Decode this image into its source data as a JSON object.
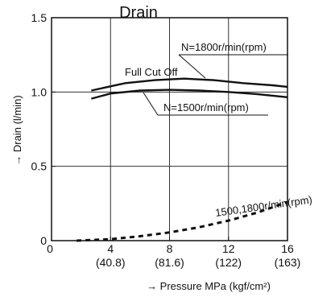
{
  "chart_data": {
    "type": "line",
    "title": "Drain",
    "xlabel": "→ Pressure MPa (kgf/cm²)",
    "ylabel": "→ Drain (l/min)",
    "xlim": [
      0,
      16
    ],
    "ylim": [
      0,
      1.5
    ],
    "grid": true,
    "x_ticks": [
      {
        "value": 0,
        "label": "0",
        "sub": ""
      },
      {
        "value": 4,
        "label": "4",
        "sub": "(40.8)"
      },
      {
        "value": 8,
        "label": "8",
        "sub": "(81.6)"
      },
      {
        "value": 12,
        "label": "12",
        "sub": "(122)"
      },
      {
        "value": 16,
        "label": "16",
        "sub": "(163)"
      }
    ],
    "y_ticks": [
      {
        "value": 0,
        "label": "0"
      },
      {
        "value": 0.5,
        "label": "0.5"
      },
      {
        "value": 1.0,
        "label": "1.0"
      },
      {
        "value": 1.5,
        "label": "1.5"
      }
    ],
    "series": [
      {
        "name": "N=1800r/min(rpm)",
        "style": "solid",
        "x": [
          2.7,
          5,
          7,
          9,
          11,
          13,
          15,
          16
        ],
        "y": [
          1.01,
          1.06,
          1.08,
          1.09,
          1.08,
          1.06,
          1.045,
          1.035
        ]
      },
      {
        "name": "N=1500r/min(rpm)",
        "style": "solid",
        "x": [
          2.7,
          4,
          6,
          8,
          10,
          12,
          14,
          16
        ],
        "y": [
          0.955,
          0.99,
          1.01,
          1.015,
          1.01,
          1.0,
          0.985,
          0.965
        ]
      },
      {
        "name": "1500,1800r/min(rpm)",
        "style": "dashed",
        "x": [
          1.7,
          4,
          6,
          8,
          10,
          12,
          14,
          16
        ],
        "y": [
          0.0,
          0.01,
          0.03,
          0.055,
          0.09,
          0.135,
          0.19,
          0.26
        ]
      }
    ],
    "annotations": [
      {
        "text": "Full Cut Off"
      },
      {
        "text": "N=1800r/min(rpm)"
      },
      {
        "text": "N=1500r/min(rpm)"
      },
      {
        "text": "1500,1800r/min(rpm)"
      }
    ]
  }
}
